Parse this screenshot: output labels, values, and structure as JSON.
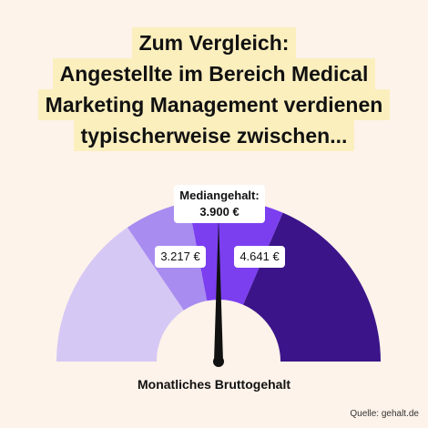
{
  "headline": {
    "lines": [
      "Zum Vergleich:",
      "Angestellte im Bereich Medical",
      "Marketing Management verdienen",
      "typischerweise zwischen..."
    ]
  },
  "chart_data": {
    "type": "gauge",
    "median_label": "Mediangehalt:",
    "median_value": "3.900 €",
    "low_value": "3.217 €",
    "high_value": "4.641 €",
    "caption": "Monatliches Bruttogehalt",
    "needle_fraction": 0.5,
    "segments": [
      {
        "from": 0.0,
        "to": 0.31,
        "color": "#d6c8f5"
      },
      {
        "from": 0.31,
        "to": 0.44,
        "color": "#a98cf0"
      },
      {
        "from": 0.44,
        "to": 0.63,
        "color": "#7b3ff0"
      },
      {
        "from": 0.63,
        "to": 1.0,
        "color": "#3b1489"
      }
    ]
  },
  "source": "Quelle: gehalt.de",
  "colors": {
    "background": "#fdf3ea",
    "highlight": "#fbefbe",
    "needle": "#111111"
  }
}
